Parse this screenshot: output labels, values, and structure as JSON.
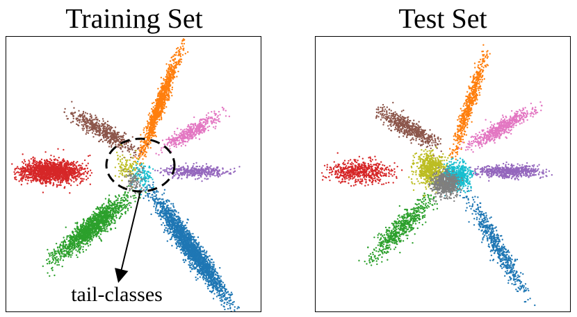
{
  "chart_data": [
    {
      "type": "scatter",
      "title": "Training Set",
      "xlabel": "",
      "ylabel": "",
      "grid": false,
      "legend": "none",
      "annotation": "tail-classes",
      "series": [
        {
          "color": "#d62728",
          "center": [
            -0.68,
            0.02
          ],
          "direction_deg": 180,
          "length": 0.48,
          "width": 0.09,
          "n": 1500
        },
        {
          "color": "#1f77b4",
          "center": [
            0.48,
            -0.62
          ],
          "direction_deg": -55,
          "length": 0.95,
          "width": 0.07,
          "n": 2200
        },
        {
          "color": "#2ca02c",
          "center": [
            -0.35,
            -0.45
          ],
          "direction_deg": -140,
          "length": 0.72,
          "width": 0.08,
          "n": 1500
        },
        {
          "color": "#ff7f0e",
          "center": [
            0.22,
            0.58
          ],
          "direction_deg": 70,
          "length": 0.85,
          "width": 0.045,
          "n": 1100
        },
        {
          "color": "#8c564b",
          "center": [
            -0.25,
            0.35
          ],
          "direction_deg": 150,
          "length": 0.55,
          "width": 0.07,
          "n": 550
        },
        {
          "color": "#e377c2",
          "center": [
            0.48,
            0.35
          ],
          "direction_deg": 30,
          "length": 0.5,
          "width": 0.06,
          "n": 420
        },
        {
          "color": "#9467bd",
          "center": [
            0.52,
            0.02
          ],
          "direction_deg": 0,
          "length": 0.5,
          "width": 0.05,
          "n": 380
        },
        {
          "color": "#bcbd22",
          "center": [
            -0.05,
            0.04
          ],
          "direction_deg": 0,
          "length": 0.18,
          "width": 0.12,
          "n": 120
        },
        {
          "color": "#17becf",
          "center": [
            0.08,
            -0.02
          ],
          "direction_deg": 0,
          "length": 0.15,
          "width": 0.1,
          "n": 110
        },
        {
          "color": "#7f7f7f",
          "center": [
            0.0,
            -0.06
          ],
          "direction_deg": 0,
          "length": 0.15,
          "width": 0.1,
          "n": 90
        }
      ]
    },
    {
      "type": "scatter",
      "title": "Test Set",
      "xlabel": "",
      "ylabel": "",
      "grid": false,
      "legend": "none",
      "series": [
        {
          "color": "#d62728",
          "center": [
            -0.68,
            0.02
          ],
          "direction_deg": 180,
          "length": 0.48,
          "width": 0.09,
          "n": 600
        },
        {
          "color": "#1f77b4",
          "center": [
            0.45,
            -0.6
          ],
          "direction_deg": -60,
          "length": 0.85,
          "width": 0.06,
          "n": 600
        },
        {
          "color": "#2ca02c",
          "center": [
            -0.35,
            -0.45
          ],
          "direction_deg": -135,
          "length": 0.65,
          "width": 0.08,
          "n": 600
        },
        {
          "color": "#ff7f0e",
          "center": [
            0.22,
            0.58
          ],
          "direction_deg": 72,
          "length": 0.8,
          "width": 0.045,
          "n": 600
        },
        {
          "color": "#8c564b",
          "center": [
            -0.28,
            0.38
          ],
          "direction_deg": 150,
          "length": 0.5,
          "width": 0.07,
          "n": 600
        },
        {
          "color": "#e377c2",
          "center": [
            0.48,
            0.38
          ],
          "direction_deg": 30,
          "length": 0.55,
          "width": 0.06,
          "n": 600
        },
        {
          "color": "#9467bd",
          "center": [
            0.55,
            0.02
          ],
          "direction_deg": 0,
          "length": 0.48,
          "width": 0.05,
          "n": 600
        },
        {
          "color": "#bcbd22",
          "center": [
            -0.1,
            0.04
          ],
          "direction_deg": 0,
          "length": 0.25,
          "width": 0.14,
          "n": 600
        },
        {
          "color": "#17becf",
          "center": [
            0.12,
            -0.02
          ],
          "direction_deg": 0,
          "length": 0.2,
          "width": 0.11,
          "n": 600
        },
        {
          "color": "#7f7f7f",
          "center": [
            0.02,
            -0.08
          ],
          "direction_deg": 0,
          "length": 0.2,
          "width": 0.1,
          "n": 600
        }
      ]
    }
  ]
}
